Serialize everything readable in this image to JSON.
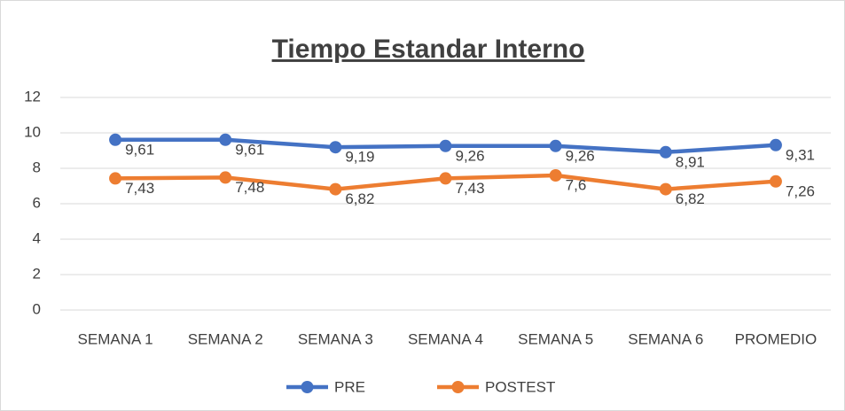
{
  "chart_data": {
    "type": "line",
    "title": "Tiempo Estandar Interno",
    "categories": [
      "SEMANA 1",
      "SEMANA 2",
      "SEMANA 3",
      "SEMANA 4",
      "SEMANA 5",
      "SEMANA 6",
      "PROMEDIO"
    ],
    "series": [
      {
        "name": "PRE",
        "color": "#4472c4",
        "values": [
          9.61,
          9.61,
          9.19,
          9.26,
          9.26,
          8.91,
          9.31
        ],
        "value_labels": [
          "9,61",
          "9,61",
          "9,19",
          "9,26",
          "9,26",
          "8,91",
          "9,31"
        ]
      },
      {
        "name": "POSTEST",
        "color": "#ed7d31",
        "values": [
          7.43,
          7.48,
          6.82,
          7.43,
          7.6,
          6.82,
          7.26
        ],
        "value_labels": [
          "7,43",
          "7,48",
          "6,82",
          "7,43",
          "7,6",
          "6,82",
          "7,26"
        ]
      }
    ],
    "ylim": [
      0,
      12
    ],
    "yticks": [
      0,
      2,
      4,
      6,
      8,
      10,
      12
    ],
    "grid": true,
    "legend": "bottom"
  }
}
